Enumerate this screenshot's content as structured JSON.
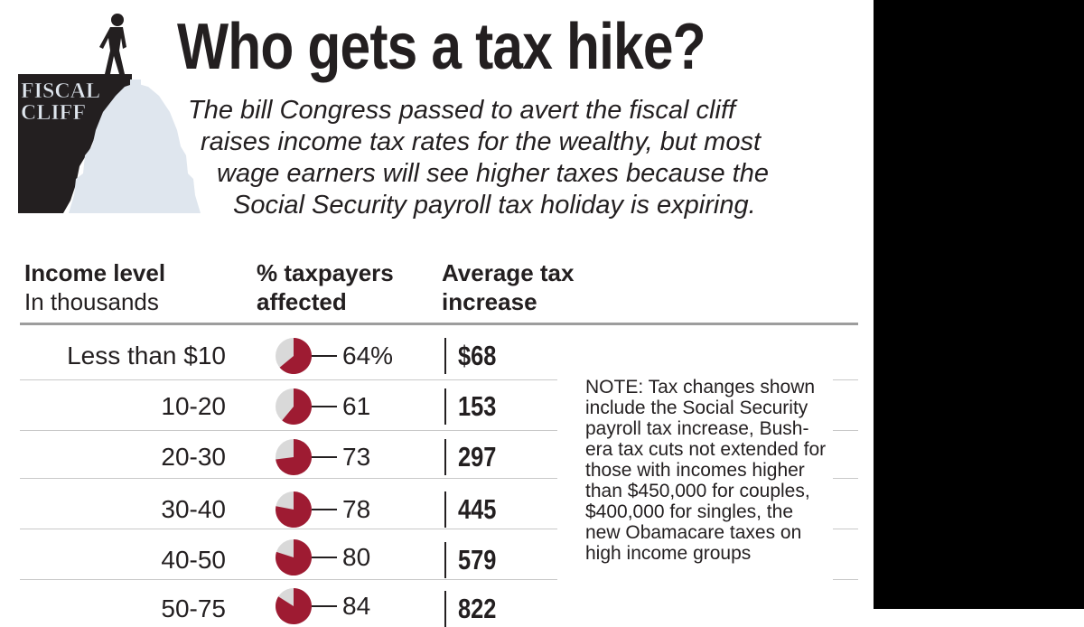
{
  "logo": {
    "line1": "FISCAL",
    "line2": "CLIFF"
  },
  "title": "Who gets a tax hike?",
  "intro_lines": [
    "The bill Congress passed to avert the fiscal cliff",
    "raises income tax rates for the wealthy, but most",
    "wage earners will see higher taxes because the",
    "Social Security payroll tax holiday is expiring."
  ],
  "columns": {
    "income_bold": "Income level",
    "income_sub": "In thousands",
    "pct_line1": "% taxpayers",
    "pct_line2": "affected",
    "avg_line1": "Average tax",
    "avg_line2": "increase"
  },
  "rows": [
    {
      "income": "Less than $10",
      "pct_label": "64%",
      "amount": "$68"
    },
    {
      "income": "10-20",
      "pct_label": "61",
      "amount": "153"
    },
    {
      "income": "20-30",
      "pct_label": "73",
      "amount": "297"
    },
    {
      "income": "30-40",
      "pct_label": "78",
      "amount": "445"
    },
    {
      "income": "40-50",
      "pct_label": "80",
      "amount": "579"
    },
    {
      "income": "50-75",
      "pct_label": "84",
      "amount": "822"
    }
  ],
  "note": "NOTE: Tax changes shown include the Social Security payroll tax increase, Bush-era tax cuts not extended for those with incomes higher than $450,000 for couples, $400,000 for singles, the new Obamacare taxes on high income groups",
  "colors": {
    "pie_fill": "#9e1b32",
    "pie_background": "#d9d9d9",
    "text": "#231f20",
    "capitol": "#dfe6ee",
    "cliff": "#231f20",
    "logo_text": "#dfe6ee"
  },
  "chart_data": {
    "type": "table",
    "columns": [
      "Income level",
      "% taxpayers affected",
      "Average tax increase"
    ],
    "categories": [
      "Less than $10",
      "10-20",
      "20-30",
      "30-40",
      "40-50",
      "50-75"
    ],
    "series": [
      {
        "name": "% taxpayers affected",
        "values": [
          64,
          61,
          73,
          78,
          80,
          84
        ]
      },
      {
        "name": "Average tax increase",
        "values": [
          68,
          153,
          297,
          445,
          579,
          822
        ]
      }
    ]
  }
}
